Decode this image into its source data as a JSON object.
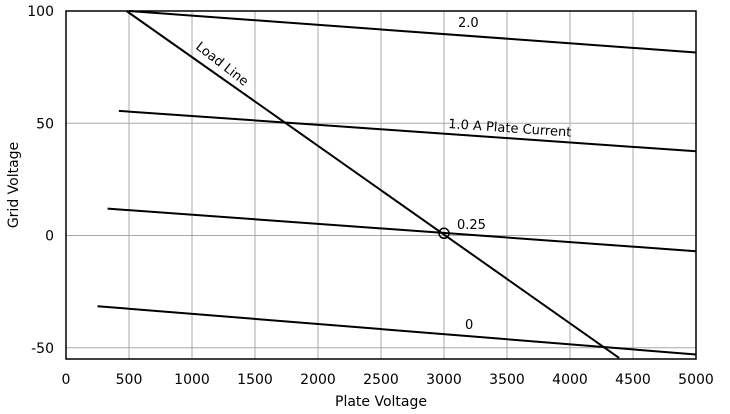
{
  "chart_data": {
    "type": "line",
    "title": "",
    "xlabel": "Plate Voltage",
    "ylabel": "Grid Voltage",
    "xlim": [
      0,
      5000
    ],
    "ylim": [
      -55,
      100
    ],
    "xticks": [
      0,
      500,
      1000,
      1500,
      2000,
      2500,
      3000,
      3500,
      4000,
      4500,
      5000
    ],
    "yticks": [
      -50,
      0,
      50,
      100
    ],
    "grid": true,
    "legend": "none",
    "series": [
      {
        "label": "2.0",
        "points": [
          [
            500,
            100
          ],
          [
            5000,
            81.5
          ]
        ]
      },
      {
        "label": "1.0 A Plate Current",
        "points": [
          [
            420,
            55.5
          ],
          [
            5000,
            37.5
          ]
        ]
      },
      {
        "label": "0.25",
        "points": [
          [
            330,
            12
          ],
          [
            5000,
            -7
          ]
        ]
      },
      {
        "label": "0",
        "points": [
          [
            250,
            -31.5
          ],
          [
            5000,
            -53
          ]
        ]
      },
      {
        "label": "Load Line",
        "points": [
          [
            480,
            100
          ],
          [
            4390,
            -54.5
          ]
        ]
      }
    ],
    "operating_point": {
      "x": 3000,
      "y": 1
    },
    "annotations": [
      {
        "text": "Load Line"
      }
    ]
  }
}
